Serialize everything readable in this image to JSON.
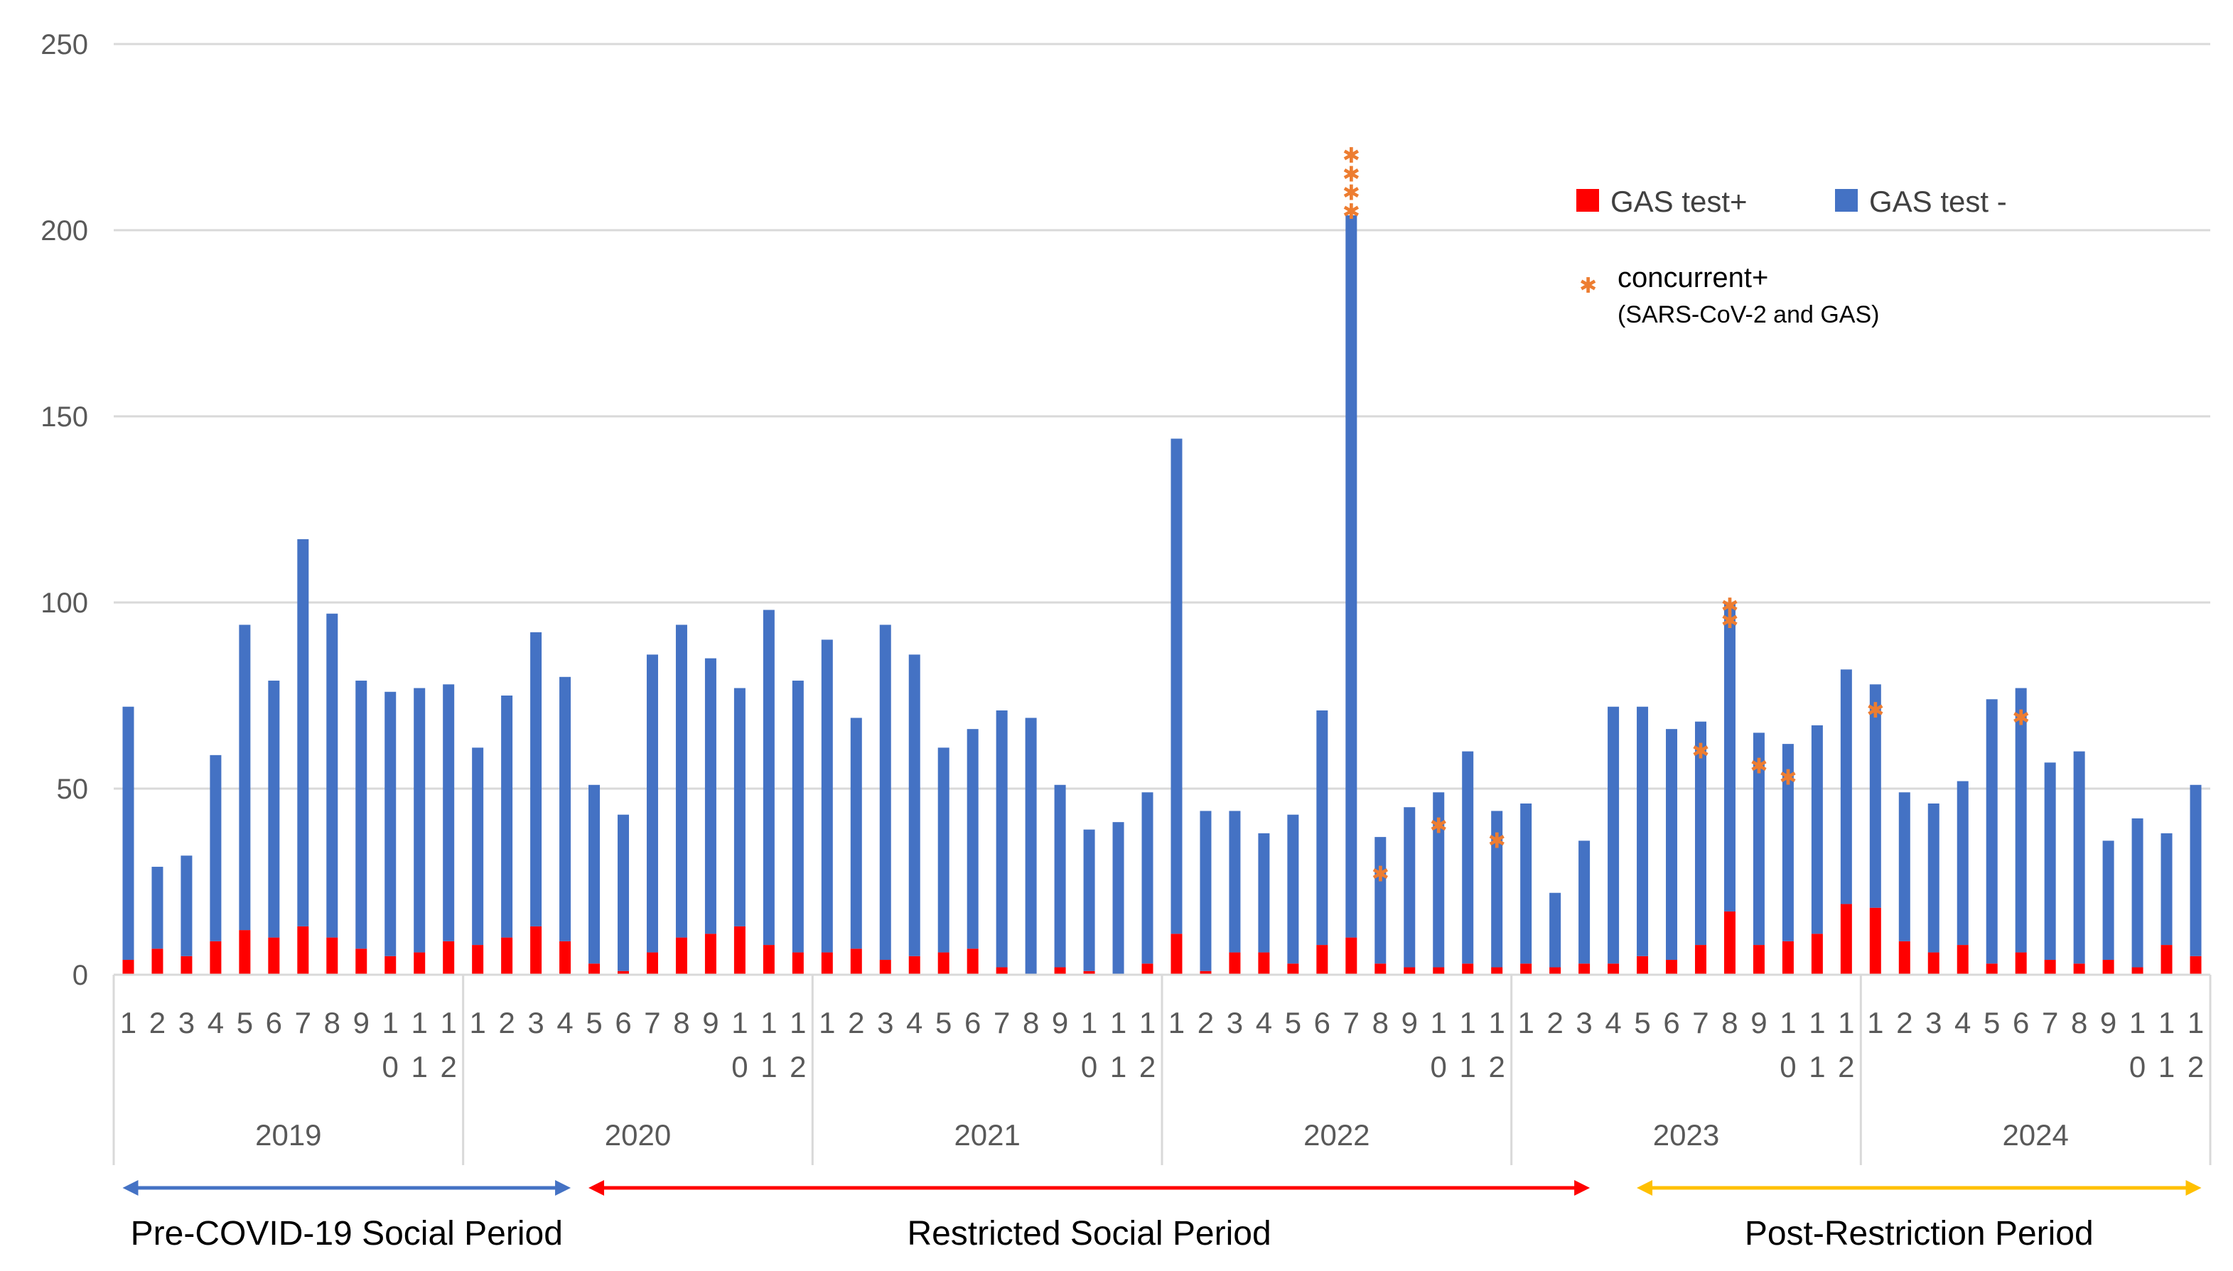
{
  "chart_data": {
    "type": "bar",
    "stacked": true,
    "ylim": [
      0,
      250
    ],
    "yticks": [
      0,
      50,
      100,
      150,
      200,
      250
    ],
    "grid": true,
    "legend_position": "top-right",
    "years": [
      "2019",
      "2020",
      "2021",
      "2022",
      "2023",
      "2024"
    ],
    "month_labels": [
      "1",
      "2",
      "3",
      "4",
      "5",
      "6",
      "7",
      "8",
      "9",
      "10",
      "11",
      "12"
    ],
    "series": [
      {
        "name": "GAS test+",
        "color": "#FF0000",
        "values": [
          4,
          7,
          5,
          9,
          12,
          10,
          13,
          10,
          7,
          5,
          6,
          9,
          8,
          10,
          13,
          9,
          3,
          1,
          6,
          10,
          11,
          13,
          8,
          6,
          6,
          7,
          4,
          5,
          6,
          7,
          2,
          0,
          2,
          1,
          0,
          3,
          11,
          1,
          6,
          6,
          3,
          8,
          10,
          3,
          2,
          2,
          3,
          2,
          3,
          2,
          3,
          3,
          5,
          4,
          8,
          17,
          8,
          9,
          11,
          19,
          18,
          9,
          6,
          8,
          3,
          6,
          4,
          3,
          4,
          2,
          8,
          5
        ]
      },
      {
        "name": "GAS test -",
        "color": "#4472C4",
        "values": [
          68,
          22,
          27,
          50,
          82,
          69,
          104,
          87,
          72,
          71,
          71,
          69,
          53,
          65,
          79,
          71,
          48,
          42,
          80,
          84,
          74,
          64,
          90,
          73,
          84,
          62,
          90,
          81,
          55,
          59,
          69,
          69,
          49,
          38,
          41,
          46,
          133,
          43,
          38,
          32,
          40,
          63,
          194,
          34,
          43,
          47,
          57,
          42,
          43,
          20,
          33,
          69,
          67,
          62,
          60,
          83,
          57,
          53,
          56,
          63,
          60,
          40,
          40,
          44,
          71,
          71,
          53,
          57,
          32,
          40,
          30,
          46
        ]
      }
    ],
    "totals": [
      72,
      29,
      32,
      59,
      94,
      79,
      117,
      97,
      79,
      76,
      77,
      78,
      61,
      75,
      92,
      80,
      51,
      43,
      86,
      94,
      85,
      77,
      98,
      79,
      90,
      69,
      94,
      86,
      61,
      66,
      71,
      69,
      51,
      39,
      41,
      49,
      144,
      44,
      44,
      38,
      43,
      71,
      204,
      37,
      45,
      49,
      60,
      44,
      46,
      22,
      36,
      72,
      72,
      66,
      68,
      100,
      65,
      62,
      67,
      82,
      78,
      49,
      46,
      52,
      74,
      77,
      57,
      60,
      36,
      42,
      38,
      51
    ],
    "concurrent_positive": {
      "name": "concurrent+",
      "subtitle": "(SARS-CoV-2 and GAS)",
      "color": "#ED7D31",
      "markers": [
        {
          "index": 42,
          "value": 205
        },
        {
          "index": 42,
          "value": 210
        },
        {
          "index": 42,
          "value": 215
        },
        {
          "index": 42,
          "value": 220
        },
        {
          "index": 43,
          "value": 27
        },
        {
          "index": 45,
          "value": 40
        },
        {
          "index": 47,
          "value": 36
        },
        {
          "index": 54,
          "value": 60
        },
        {
          "index": 55,
          "value": 95
        },
        {
          "index": 55,
          "value": 99
        },
        {
          "index": 56,
          "value": 56
        },
        {
          "index": 57,
          "value": 53
        },
        {
          "index": 60,
          "value": 71
        },
        {
          "index": 65,
          "value": 69
        }
      ]
    },
    "periods": [
      {
        "label": "Pre-COVID-19 Social Period",
        "color": "#4472C4",
        "start_index": 0,
        "end_index": 15
      },
      {
        "label": "Restricted Social Period",
        "color": "#FF0000",
        "start_index": 16,
        "end_index": 50
      },
      {
        "label": "Post-Restriction Period",
        "color": "#FFC000",
        "start_index": 52,
        "end_index": 71
      }
    ]
  }
}
